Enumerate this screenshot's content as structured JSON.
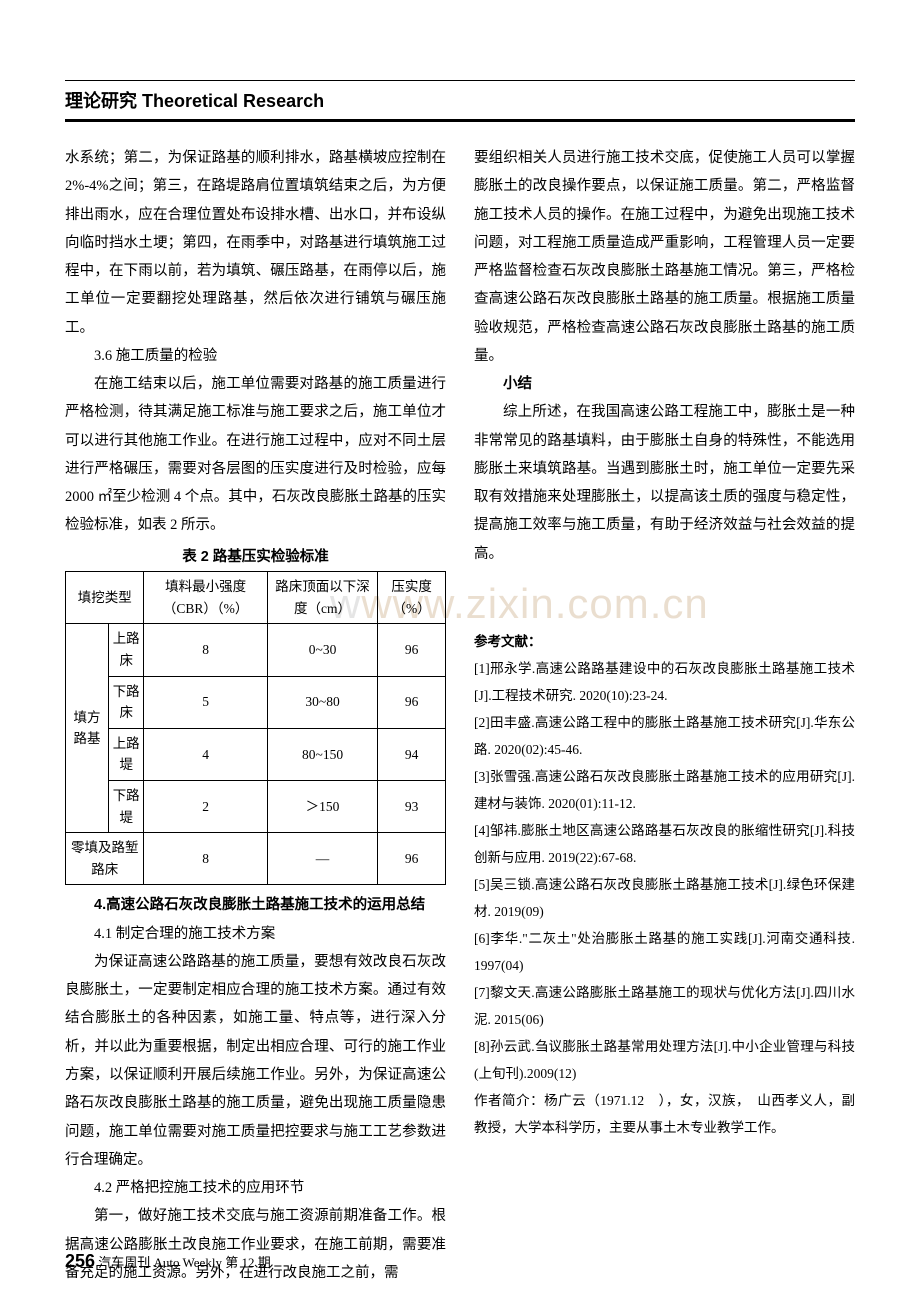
{
  "header": {
    "title_cn": "理论研究",
    "title_en": "Theoretical Research"
  },
  "left_col": {
    "p1": "水系统；第二，为保证路基的顺利排水，路基横坡应控制在 2%-4%之间；第三，在路堤路肩位置填筑结束之后，为方便排出雨水，应在合理位置处布设排水槽、出水口，并布设纵向临时挡水土埂；第四，在雨季中，对路基进行填筑施工过程中，在下雨以前，若为填筑、碾压路基，在雨停以后，施工单位一定要翻挖处理路基，然后依次进行铺筑与碾压施工。",
    "h36": "3.6 施工质量的检验",
    "p36": "在施工结束以后，施工单位需要对路基的施工质量进行严格检测，待其满足施工标准与施工要求之后，施工单位才可以进行其他施工作业。在进行施工过程中，应对不同土层进行严格碾压，需要对各层图的压实度进行及时检验，应每 2000 ㎡至少检测 4 个点。其中，石灰改良膨胀土路基的压实检验标准，如表 2 所示。",
    "table_caption": "表 2 路基压实检验标准",
    "h4": "4.高速公路石灰改良膨胀土路基施工技术的运用总结",
    "h41": "4.1 制定合理的施工技术方案",
    "p41": "为保证高速公路路基的施工质量，要想有效改良石灰改良膨胀土，一定要制定相应合理的施工技术方案。通过有效结合膨胀土的各种因素，如施工量、特点等，进行深入分析，并以此为重要根据，制定出相应合理、可行的施工作业方案，以保证顺利开展后续施工作业。另外，为保证高速公路石灰改良膨胀土路基的施工质量，避免出现施工质量隐患问题，施工单位需要对施工质量把控要求与施工工艺参数进行合理确定。",
    "h42": "4.2 严格把控施工技术的应用环节",
    "p42": "第一，做好施工技术交底与施工资源前期准备工作。根据高速公路膨胀土改良施工作业要求，在施工前期，需要准备充足的施工资源。另外，在进行改良施工之前，需"
  },
  "right_col": {
    "p_cont": "要组织相关人员进行施工技术交底，促使施工人员可以掌握膨胀土的改良操作要点，以保证施工质量。第二，严格监督施工技术人员的操作。在施工过程中，为避免出现施工技术问题，对工程施工质量造成严重影响，工程管理人员一定要严格监督检查石灰改良膨胀土路基施工情况。第三，严格检查高速公路石灰改良膨胀土路基的施工质量。根据施工质量验收规范，严格检查高速公路石灰改良膨胀土路基的施工质量。",
    "h_xj": "小结",
    "p_xj": "综上所述，在我国高速公路工程施工中，膨胀土是一种非常常见的路基填料，由于膨胀土自身的特殊性，不能选用膨胀土来填筑路基。当遇到膨胀土时，施工单位一定要先采取有效措施来处理膨胀土，以提高该土质的强度与稳定性，提高施工效率与施工质量，有助于经济效益与社会效益的提高。"
  },
  "table": {
    "col_headers": [
      "填挖类型",
      "填料最小强度（CBR）（%）",
      "路床顶面以下深度（cm）",
      "压实度（%）"
    ],
    "rows": [
      {
        "cat": "填方路基",
        "sub": "上路床",
        "cbr": "8",
        "depth": "0~30",
        "comp": "96"
      },
      {
        "cat": "",
        "sub": "下路床",
        "cbr": "5",
        "depth": "30~80",
        "comp": "96"
      },
      {
        "cat": "",
        "sub": "上路堤",
        "cbr": "4",
        "depth": "80~150",
        "comp": "94"
      },
      {
        "cat": "",
        "sub": "下路堤",
        "cbr": "2",
        "depth": "＞150",
        "comp": "93"
      },
      {
        "cat": "零填及路堑路床",
        "sub": "",
        "cbr": "8",
        "depth": "—",
        "comp": "96"
      }
    ]
  },
  "references": {
    "heading": "参考文献：",
    "items": [
      "[1]邢永学.高速公路路基建设中的石灰改良膨胀土路基施工技术[J].工程技术研究. 2020(10):23-24.",
      "[2]田丰盛.高速公路工程中的膨胀土路基施工技术研究[J].华东公路. 2020(02):45-46.",
      "[3]张雪强.高速公路石灰改良膨胀土路基施工技术的应用研究[J].建材与装饰. 2020(01):11-12.",
      "[4]邹祎.膨胀土地区高速公路路基石灰改良的胀缩性研究[J].科技创新与应用. 2019(22):67-68.",
      "[5]吴三锁.高速公路石灰改良膨胀土路基施工技术[J].绿色环保建材. 2019(09)",
      "[6]李华.\"二灰土\"处治膨胀土路基的施工实践[J].河南交通科技. 1997(04)",
      "[7]黎文天.高速公路膨胀土路基施工的现状与优化方法[J].四川水泥. 2015(06)",
      "[8]孙云武.刍议膨胀土路基常用处理方法[J].中小企业管理与科技(上旬刊).2009(12)"
    ],
    "author_info": "作者简介：杨广云（1971.12　），女，汉族，　山西孝义人，副教授，大学本科学历，主要从事土木专业教学工作。"
  },
  "footer": {
    "page_number": "256",
    "magazine": "汽车周刊 Auto Weekly  第 12 期"
  },
  "watermark": {
    "domain": "www.zixin.com.cn"
  },
  "style": {
    "body_font_size": 14.5,
    "heading_font": "SimHei",
    "body_font": "SimSun",
    "line_height": 1.95,
    "text_color": "#000000",
    "background_color": "#ffffff",
    "header_border_top": "1px",
    "header_border_bottom": "3px",
    "watermark_color": "#d9c4a9",
    "table_border": "1px solid #000"
  }
}
